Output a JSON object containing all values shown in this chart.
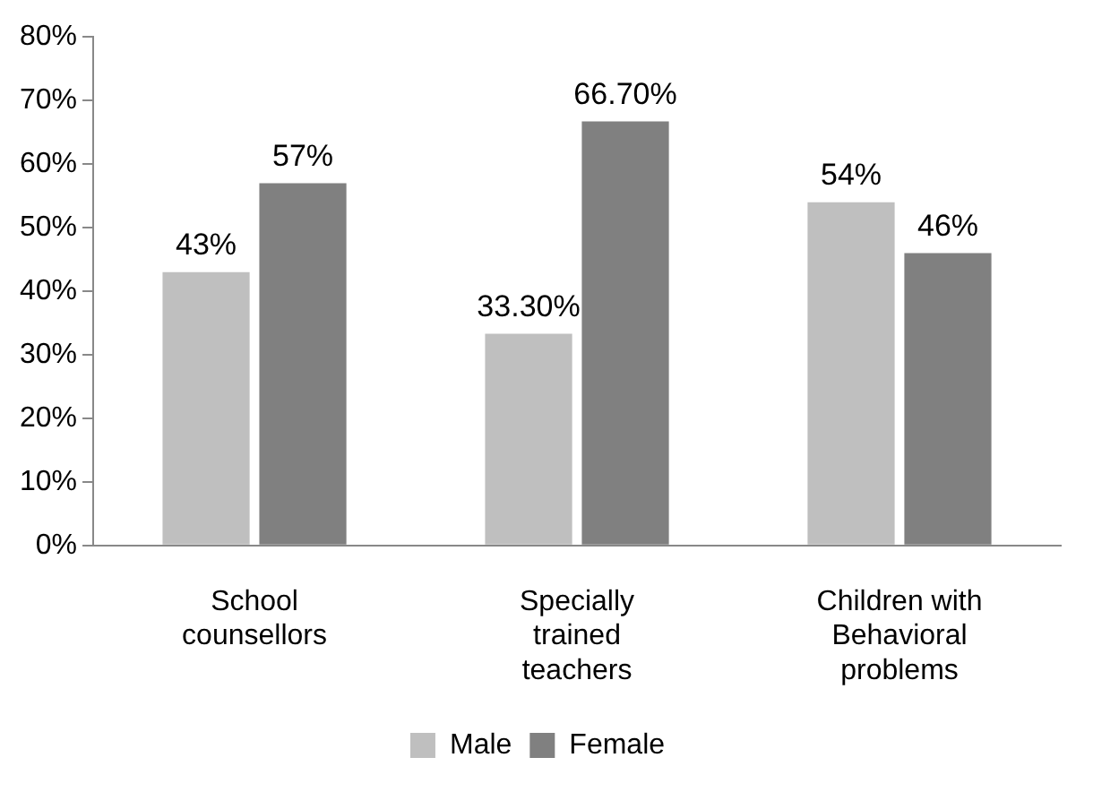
{
  "chart_data": {
    "type": "bar",
    "categories": [
      "School counsellors",
      "Specially trained teachers",
      "Children with Behavioral problems"
    ],
    "series": [
      {
        "name": "Male",
        "color": "#bfbfbf",
        "values": [
          43,
          33.3,
          54
        ],
        "value_labels": [
          "43%",
          "33.30%",
          "54%"
        ]
      },
      {
        "name": "Female",
        "color": "#808080",
        "values": [
          57,
          66.7,
          46
        ],
        "value_labels": [
          "57%",
          "66.70%",
          "46%"
        ]
      }
    ],
    "ylim": [
      0,
      80
    ],
    "yticks": [
      {
        "value": 0,
        "label": "0%"
      },
      {
        "value": 10,
        "label": "10%"
      },
      {
        "value": 20,
        "label": "20%"
      },
      {
        "value": 30,
        "label": "30%"
      },
      {
        "value": 40,
        "label": "40%"
      },
      {
        "value": 50,
        "label": "50%"
      },
      {
        "value": 60,
        "label": "60%"
      },
      {
        "value": 70,
        "label": "70%"
      },
      {
        "value": 80,
        "label": "80%"
      }
    ],
    "grid": false,
    "legend": "bottom"
  }
}
